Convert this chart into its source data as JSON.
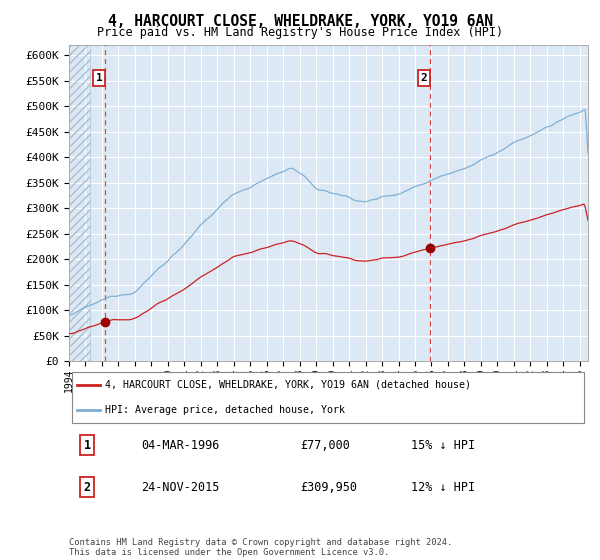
{
  "title": "4, HARCOURT CLOSE, WHELDRAKE, YORK, YO19 6AN",
  "subtitle": "Price paid vs. HM Land Registry's House Price Index (HPI)",
  "legend_line1": "4, HARCOURT CLOSE, WHELDRAKE, YORK, YO19 6AN (detached house)",
  "legend_line2": "HPI: Average price, detached house, York",
  "sale1_date": "04-MAR-1996",
  "sale1_price": 77000,
  "sale1_label": "15% ↓ HPI",
  "sale2_date": "24-NOV-2015",
  "sale2_price": 309950,
  "sale2_label": "12% ↓ HPI",
  "footer": "Contains HM Land Registry data © Crown copyright and database right 2024.\nThis data is licensed under the Open Government Licence v3.0.",
  "ylim": [
    0,
    620000
  ],
  "yticks": [
    0,
    50000,
    100000,
    150000,
    200000,
    250000,
    300000,
    350000,
    400000,
    450000,
    500000,
    550000,
    600000
  ],
  "bg_color": "#dce9f5",
  "hpi_color": "#7aadd4",
  "price_color": "#cc2222",
  "vline_color": "#dd4444",
  "dot_color": "#990000",
  "sale1_year": 1996.17,
  "sale2_year": 2015.9,
  "xmin": 1994.0,
  "xmax": 2025.5
}
